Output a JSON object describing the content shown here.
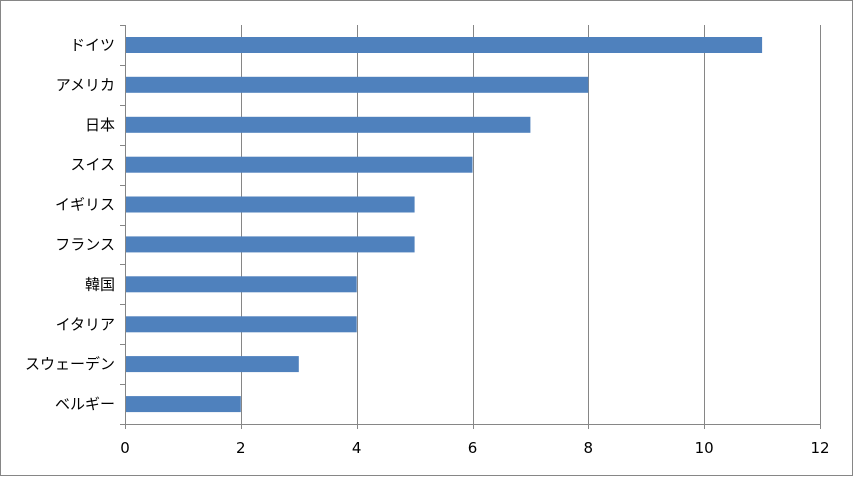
{
  "chart_data": {
    "type": "bar",
    "orientation": "horizontal",
    "categories": [
      "ドイツ",
      "アメリカ",
      "日本",
      "スイス",
      "イギリス",
      "フランス",
      "韓国",
      "イタリア",
      "スウェーデン",
      "ベルギー"
    ],
    "values": [
      11,
      8,
      7,
      6,
      5,
      5,
      4,
      4,
      3,
      2
    ],
    "x_ticks": [
      0,
      2,
      4,
      6,
      8,
      10,
      12
    ],
    "xlim": [
      0,
      12
    ],
    "grid": "vertical",
    "legend": "none",
    "title": "",
    "xlabel": "",
    "ylabel": "",
    "colors": {
      "bar": "#4F81BD",
      "grid": "#868686",
      "axis": "#868686",
      "border": "#868686"
    }
  }
}
